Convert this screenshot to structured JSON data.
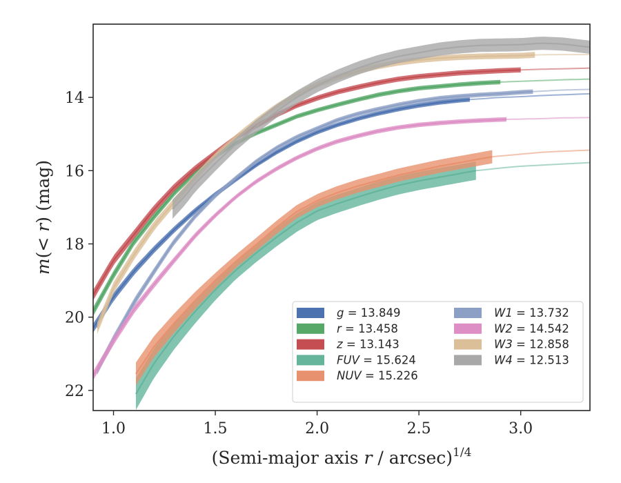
{
  "chart_data": {
    "type": "line",
    "xlabel_parts": [
      "(Semi-major axis ",
      "r",
      " / arcsec)",
      "1/4"
    ],
    "ylabel_parts": [
      "m",
      "(< ",
      "r",
      ") (mag)"
    ],
    "xlim": [
      0.9,
      3.34
    ],
    "ylim": [
      22.55,
      12.0
    ],
    "y_inverted": true,
    "xticks": [
      1.0,
      1.5,
      2.0,
      2.5,
      3.0
    ],
    "xtick_labels": [
      "1.0",
      "1.5",
      "2.0",
      "2.5",
      "3.0"
    ],
    "yticks": [
      14,
      16,
      18,
      20,
      22
    ],
    "ytick_labels": [
      "14",
      "16",
      "18",
      "20",
      "22"
    ],
    "grid": false,
    "legend_position": "lower-right",
    "legend_columns": 2,
    "series": [
      {
        "name": "g",
        "label_value": "= 13.849",
        "color": "#4c72b0",
        "band": 0.06,
        "data_end": 2.75,
        "x": [
          0.9,
          1.0,
          1.1,
          1.2,
          1.3,
          1.4,
          1.5,
          1.6,
          1.7,
          1.8,
          1.9,
          2.0,
          2.1,
          2.2,
          2.3,
          2.4,
          2.5,
          2.6,
          2.7,
          2.8,
          2.9,
          3.0,
          3.1,
          3.2,
          3.34
        ],
        "y": [
          20.3,
          19.45,
          18.75,
          18.15,
          17.6,
          17.1,
          16.65,
          16.25,
          15.85,
          15.5,
          15.2,
          14.95,
          14.75,
          14.58,
          14.44,
          14.32,
          14.22,
          14.14,
          14.08,
          14.04,
          14.0,
          13.98,
          13.95,
          13.93,
          13.9
        ]
      },
      {
        "name": "r",
        "label_value": "= 13.458",
        "color": "#55a868",
        "band": 0.06,
        "data_end": 2.9,
        "x": [
          0.9,
          1.0,
          1.1,
          1.2,
          1.3,
          1.4,
          1.5,
          1.6,
          1.7,
          1.8,
          1.9,
          2.0,
          2.1,
          2.2,
          2.3,
          2.4,
          2.5,
          2.6,
          2.7,
          2.8,
          2.9,
          3.0,
          3.1,
          3.2,
          3.34
        ],
        "y": [
          19.85,
          18.85,
          17.95,
          17.25,
          16.6,
          16.05,
          15.6,
          15.25,
          14.98,
          14.75,
          14.52,
          14.35,
          14.2,
          14.06,
          13.93,
          13.83,
          13.75,
          13.7,
          13.65,
          13.61,
          13.58,
          13.56,
          13.54,
          13.52,
          13.5
        ]
      },
      {
        "name": "z",
        "label_value": "= 13.143",
        "color": "#c44e52",
        "band": 0.07,
        "data_end": 3.0,
        "x": [
          0.9,
          1.0,
          1.1,
          1.2,
          1.3,
          1.4,
          1.5,
          1.6,
          1.7,
          1.8,
          1.9,
          2.0,
          2.1,
          2.2,
          2.3,
          2.4,
          2.5,
          2.6,
          2.7,
          2.8,
          2.9,
          3.0,
          3.1,
          3.2,
          3.34
        ],
        "y": [
          19.4,
          18.45,
          17.75,
          17.05,
          16.45,
          15.95,
          15.52,
          15.1,
          14.78,
          14.48,
          14.22,
          14.02,
          13.85,
          13.72,
          13.6,
          13.5,
          13.43,
          13.38,
          13.33,
          13.3,
          13.27,
          13.25,
          13.23,
          13.22,
          13.2
        ]
      },
      {
        "name": "FUV",
        "label_value": "= 15.624",
        "color": "#64b59c",
        "band": 0.25,
        "data_end": 2.78,
        "x": [
          1.11,
          1.2,
          1.3,
          1.4,
          1.5,
          1.6,
          1.7,
          1.8,
          1.9,
          2.0,
          2.1,
          2.2,
          2.3,
          2.4,
          2.5,
          2.6,
          2.7,
          2.78,
          2.9,
          3.0,
          3.1,
          3.2,
          3.34
        ],
        "y": [
          22.1,
          21.25,
          20.5,
          19.85,
          19.25,
          18.72,
          18.25,
          17.82,
          17.42,
          17.1,
          16.9,
          16.72,
          16.55,
          16.4,
          16.28,
          16.18,
          16.08,
          16.0,
          15.93,
          15.88,
          15.85,
          15.82,
          15.78
        ]
      },
      {
        "name": "NUV",
        "label_value": "= 15.226",
        "color": "#e8916e",
        "band": 0.18,
        "data_end": 2.86,
        "x": [
          1.11,
          1.2,
          1.3,
          1.4,
          1.5,
          1.6,
          1.7,
          1.8,
          1.9,
          2.0,
          2.1,
          2.2,
          2.3,
          2.4,
          2.5,
          2.6,
          2.7,
          2.86,
          3.0,
          3.1,
          3.2,
          3.34
        ],
        "y": [
          21.55,
          20.8,
          20.15,
          19.55,
          19.0,
          18.48,
          18.02,
          17.55,
          17.12,
          16.82,
          16.6,
          16.42,
          16.27,
          16.12,
          16.0,
          15.88,
          15.78,
          15.62,
          15.55,
          15.5,
          15.47,
          15.44
        ]
      },
      {
        "name": "W1",
        "label_value": "= 13.732",
        "color": "#8c9fc4",
        "band": 0.06,
        "data_end": 3.06,
        "x": [
          0.92,
          1.0,
          1.1,
          1.2,
          1.29,
          1.4,
          1.5,
          1.6,
          1.7,
          1.8,
          1.9,
          2.0,
          2.1,
          2.2,
          2.3,
          2.4,
          2.5,
          2.6,
          2.7,
          2.8,
          2.9,
          3.0,
          3.1,
          3.2,
          3.34
        ],
        "y": [
          21.45,
          20.6,
          19.6,
          18.75,
          18.0,
          17.25,
          16.68,
          16.2,
          15.75,
          15.38,
          15.08,
          14.85,
          14.62,
          14.45,
          14.32,
          14.2,
          14.1,
          14.02,
          13.97,
          13.93,
          13.9,
          13.86,
          13.83,
          13.8,
          13.78
        ]
      },
      {
        "name": "W2",
        "label_value": "= 14.542",
        "color": "#dd8ec4",
        "band": 0.06,
        "data_end": 2.93,
        "x": [
          0.9,
          1.0,
          1.1,
          1.2,
          1.29,
          1.4,
          1.5,
          1.6,
          1.7,
          1.8,
          1.9,
          2.0,
          2.1,
          2.2,
          2.3,
          2.4,
          2.5,
          2.6,
          2.7,
          2.8,
          2.93,
          3.1,
          3.2,
          3.34
        ],
        "y": [
          21.6,
          20.65,
          19.8,
          19.1,
          18.5,
          17.78,
          17.22,
          16.72,
          16.3,
          15.95,
          15.65,
          15.4,
          15.2,
          15.05,
          14.92,
          14.82,
          14.75,
          14.7,
          14.66,
          14.63,
          14.6,
          14.58,
          14.56,
          14.55
        ]
      },
      {
        "name": "W3",
        "label_value": "= 12.858",
        "color": "#dbbf98",
        "band": 0.08,
        "data_end": 3.07,
        "x": [
          0.92,
          1.0,
          1.1,
          1.2,
          1.3,
          1.4,
          1.5,
          1.6,
          1.7,
          1.8,
          1.9,
          2.0,
          2.1,
          2.2,
          2.3,
          2.4,
          2.5,
          2.6,
          2.7,
          2.8,
          2.9,
          3.0,
          3.07,
          3.2,
          3.34
        ],
        "y": [
          20.3,
          19.2,
          18.3,
          17.5,
          16.85,
          16.2,
          15.6,
          15.1,
          14.65,
          14.25,
          13.92,
          13.65,
          13.45,
          13.28,
          13.15,
          13.05,
          12.98,
          12.93,
          12.9,
          12.88,
          12.87,
          12.86,
          12.84,
          12.83,
          12.83
        ]
      },
      {
        "name": "W4",
        "label_value": "= 12.513",
        "color": "#a8a8a8",
        "band": 0.18,
        "data_end": 3.34,
        "x": [
          1.29,
          1.35,
          1.4,
          1.5,
          1.6,
          1.7,
          1.8,
          1.9,
          2.0,
          2.1,
          2.2,
          2.3,
          2.4,
          2.5,
          2.6,
          2.7,
          2.8,
          2.9,
          3.0,
          3.1,
          3.2,
          3.34
        ],
        "y": [
          17.05,
          16.7,
          16.35,
          15.8,
          15.28,
          14.8,
          14.38,
          14.0,
          13.68,
          13.42,
          13.2,
          13.02,
          12.88,
          12.78,
          12.68,
          12.62,
          12.58,
          12.57,
          12.56,
          12.52,
          12.54,
          12.63
        ]
      }
    ]
  }
}
